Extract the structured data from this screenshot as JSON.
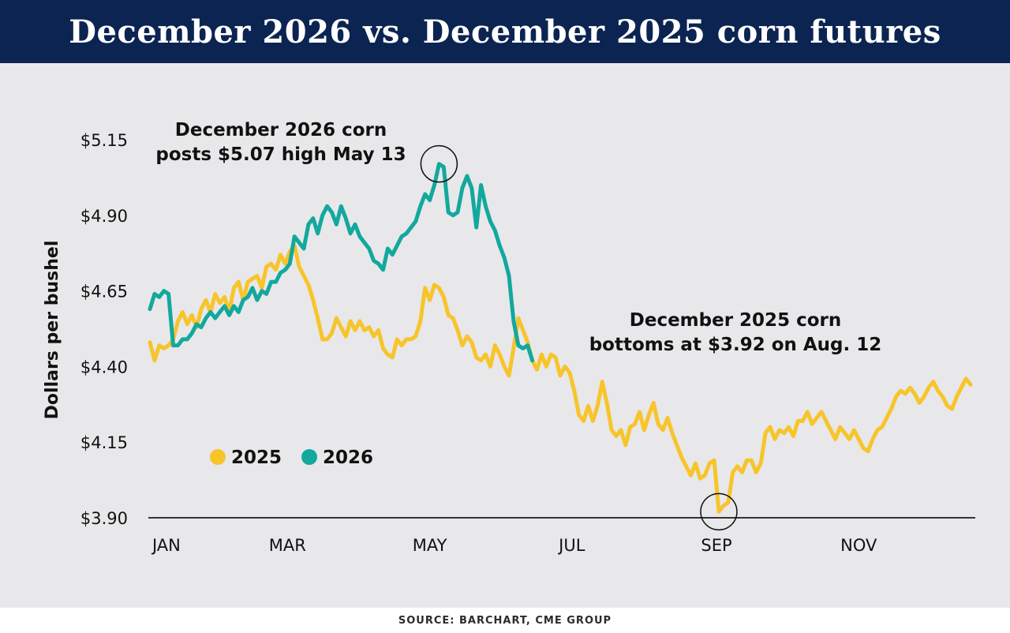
{
  "header": {
    "title": "December 2026 vs. December 2025 corn futures"
  },
  "footer": {
    "source": "SOURCE: BARCHART, CME GROUP"
  },
  "chart_data": {
    "type": "line",
    "ylabel": "Dollars per bushel",
    "ylim": [
      3.9,
      5.15
    ],
    "y_ticks": [
      {
        "value": 5.15,
        "label": "$5.15"
      },
      {
        "value": 4.9,
        "label": "$4.90"
      },
      {
        "value": 4.65,
        "label": "$4.65"
      },
      {
        "value": 4.4,
        "label": "$4.40"
      },
      {
        "value": 4.15,
        "label": "$4.15"
      },
      {
        "value": 3.9,
        "label": "$3.90"
      }
    ],
    "x_unit": "day of year",
    "xlim": [
      1,
      355
    ],
    "x_ticks": [
      {
        "value": 2,
        "label": "JAN"
      },
      {
        "value": 60,
        "label": "MAR"
      },
      {
        "value": 121,
        "label": "MAY"
      },
      {
        "value": 182,
        "label": "JUL"
      },
      {
        "value": 244,
        "label": "SEP"
      },
      {
        "value": 305,
        "label": "NOV"
      }
    ],
    "legend": {
      "placement": "lower-left"
    },
    "series": [
      {
        "name": "2025",
        "color": "#f7c42b",
        "points": [
          [
            1,
            4.48
          ],
          [
            3,
            4.42
          ],
          [
            5,
            4.47
          ],
          [
            7,
            4.46
          ],
          [
            9,
            4.47
          ],
          [
            11,
            4.49
          ],
          [
            13,
            4.55
          ],
          [
            15,
            4.58
          ],
          [
            17,
            4.54
          ],
          [
            19,
            4.57
          ],
          [
            21,
            4.53
          ],
          [
            23,
            4.59
          ],
          [
            25,
            4.62
          ],
          [
            27,
            4.58
          ],
          [
            29,
            4.64
          ],
          [
            31,
            4.61
          ],
          [
            33,
            4.63
          ],
          [
            35,
            4.58
          ],
          [
            37,
            4.66
          ],
          [
            39,
            4.68
          ],
          [
            41,
            4.62
          ],
          [
            43,
            4.68
          ],
          [
            45,
            4.69
          ],
          [
            47,
            4.7
          ],
          [
            49,
            4.66
          ],
          [
            51,
            4.73
          ],
          [
            53,
            4.74
          ],
          [
            55,
            4.72
          ],
          [
            57,
            4.77
          ],
          [
            59,
            4.74
          ],
          [
            61,
            4.78
          ],
          [
            63,
            4.8
          ],
          [
            65,
            4.73
          ],
          [
            67,
            4.7
          ],
          [
            69,
            4.67
          ],
          [
            71,
            4.62
          ],
          [
            73,
            4.56
          ],
          [
            75,
            4.49
          ],
          [
            77,
            4.49
          ],
          [
            79,
            4.51
          ],
          [
            81,
            4.56
          ],
          [
            83,
            4.53
          ],
          [
            85,
            4.5
          ],
          [
            87,
            4.55
          ],
          [
            89,
            4.52
          ],
          [
            91,
            4.55
          ],
          [
            93,
            4.52
          ],
          [
            95,
            4.53
          ],
          [
            97,
            4.5
          ],
          [
            99,
            4.52
          ],
          [
            101,
            4.46
          ],
          [
            103,
            4.44
          ],
          [
            105,
            4.43
          ],
          [
            107,
            4.49
          ],
          [
            109,
            4.47
          ],
          [
            111,
            4.49
          ],
          [
            113,
            4.49
          ],
          [
            115,
            4.5
          ],
          [
            117,
            4.55
          ],
          [
            119,
            4.66
          ],
          [
            121,
            4.62
          ],
          [
            123,
            4.67
          ],
          [
            125,
            4.66
          ],
          [
            127,
            4.63
          ],
          [
            129,
            4.57
          ],
          [
            131,
            4.56
          ],
          [
            133,
            4.52
          ],
          [
            135,
            4.47
          ],
          [
            137,
            4.5
          ],
          [
            139,
            4.48
          ],
          [
            141,
            4.43
          ],
          [
            143,
            4.42
          ],
          [
            145,
            4.44
          ],
          [
            147,
            4.4
          ],
          [
            149,
            4.47
          ],
          [
            151,
            4.44
          ],
          [
            153,
            4.4
          ],
          [
            155,
            4.37
          ],
          [
            157,
            4.46
          ],
          [
            159,
            4.56
          ],
          [
            161,
            4.52
          ],
          [
            163,
            4.48
          ],
          [
            165,
            4.42
          ],
          [
            167,
            4.39
          ],
          [
            169,
            4.44
          ],
          [
            171,
            4.4
          ],
          [
            173,
            4.44
          ],
          [
            175,
            4.43
          ],
          [
            177,
            4.37
          ],
          [
            179,
            4.4
          ],
          [
            181,
            4.38
          ],
          [
            183,
            4.32
          ],
          [
            185,
            4.24
          ],
          [
            187,
            4.22
          ],
          [
            189,
            4.27
          ],
          [
            191,
            4.22
          ],
          [
            193,
            4.27
          ],
          [
            195,
            4.35
          ],
          [
            197,
            4.28
          ],
          [
            199,
            4.19
          ],
          [
            201,
            4.17
          ],
          [
            203,
            4.19
          ],
          [
            205,
            4.14
          ],
          [
            207,
            4.2
          ],
          [
            209,
            4.21
          ],
          [
            211,
            4.25
          ],
          [
            213,
            4.19
          ],
          [
            215,
            4.24
          ],
          [
            217,
            4.28
          ],
          [
            219,
            4.21
          ],
          [
            221,
            4.19
          ],
          [
            223,
            4.23
          ],
          [
            225,
            4.18
          ],
          [
            227,
            4.14
          ],
          [
            229,
            4.1
          ],
          [
            231,
            4.07
          ],
          [
            233,
            4.04
          ],
          [
            235,
            4.08
          ],
          [
            237,
            4.03
          ],
          [
            239,
            4.04
          ],
          [
            241,
            4.08
          ],
          [
            243,
            4.09
          ],
          [
            245,
            3.92
          ],
          [
            247,
            3.94
          ],
          [
            249,
            3.95
          ],
          [
            251,
            4.05
          ],
          [
            253,
            4.07
          ],
          [
            255,
            4.05
          ],
          [
            257,
            4.09
          ],
          [
            259,
            4.09
          ],
          [
            261,
            4.05
          ],
          [
            263,
            4.08
          ],
          [
            265,
            4.18
          ],
          [
            267,
            4.2
          ],
          [
            269,
            4.16
          ],
          [
            271,
            4.19
          ],
          [
            273,
            4.18
          ],
          [
            275,
            4.2
          ],
          [
            277,
            4.17
          ],
          [
            279,
            4.22
          ],
          [
            281,
            4.22
          ],
          [
            283,
            4.25
          ],
          [
            285,
            4.21
          ],
          [
            287,
            4.23
          ],
          [
            289,
            4.25
          ],
          [
            291,
            4.22
          ],
          [
            293,
            4.19
          ],
          [
            295,
            4.16
          ],
          [
            297,
            4.2
          ],
          [
            299,
            4.18
          ],
          [
            301,
            4.16
          ],
          [
            303,
            4.19
          ],
          [
            305,
            4.16
          ],
          [
            307,
            4.13
          ],
          [
            309,
            4.12
          ],
          [
            311,
            4.16
          ],
          [
            313,
            4.19
          ],
          [
            315,
            4.2
          ],
          [
            317,
            4.23
          ],
          [
            319,
            4.26
          ],
          [
            321,
            4.3
          ],
          [
            323,
            4.32
          ],
          [
            325,
            4.31
          ],
          [
            327,
            4.33
          ],
          [
            329,
            4.31
          ],
          [
            331,
            4.28
          ],
          [
            333,
            4.3
          ],
          [
            335,
            4.33
          ],
          [
            337,
            4.35
          ],
          [
            339,
            4.32
          ],
          [
            341,
            4.3
          ],
          [
            343,
            4.27
          ],
          [
            345,
            4.26
          ],
          [
            347,
            4.3
          ],
          [
            349,
            4.33
          ],
          [
            351,
            4.36
          ],
          [
            353,
            4.34
          ]
        ]
      },
      {
        "name": "2026",
        "color": "#13a89e",
        "points": [
          [
            1,
            4.59
          ],
          [
            3,
            4.64
          ],
          [
            5,
            4.63
          ],
          [
            7,
            4.65
          ],
          [
            9,
            4.64
          ],
          [
            11,
            4.47
          ],
          [
            13,
            4.47
          ],
          [
            15,
            4.49
          ],
          [
            17,
            4.49
          ],
          [
            19,
            4.51
          ],
          [
            21,
            4.54
          ],
          [
            23,
            4.53
          ],
          [
            25,
            4.56
          ],
          [
            27,
            4.58
          ],
          [
            29,
            4.56
          ],
          [
            31,
            4.58
          ],
          [
            33,
            4.6
          ],
          [
            35,
            4.57
          ],
          [
            37,
            4.6
          ],
          [
            39,
            4.58
          ],
          [
            41,
            4.62
          ],
          [
            43,
            4.63
          ],
          [
            45,
            4.66
          ],
          [
            47,
            4.62
          ],
          [
            49,
            4.65
          ],
          [
            51,
            4.64
          ],
          [
            53,
            4.68
          ],
          [
            55,
            4.68
          ],
          [
            57,
            4.71
          ],
          [
            59,
            4.72
          ],
          [
            61,
            4.74
          ],
          [
            63,
            4.83
          ],
          [
            65,
            4.81
          ],
          [
            67,
            4.79
          ],
          [
            69,
            4.87
          ],
          [
            71,
            4.89
          ],
          [
            73,
            4.84
          ],
          [
            75,
            4.9
          ],
          [
            77,
            4.93
          ],
          [
            79,
            4.91
          ],
          [
            81,
            4.87
          ],
          [
            83,
            4.93
          ],
          [
            85,
            4.89
          ],
          [
            87,
            4.84
          ],
          [
            89,
            4.87
          ],
          [
            91,
            4.83
          ],
          [
            93,
            4.81
          ],
          [
            95,
            4.79
          ],
          [
            97,
            4.75
          ],
          [
            99,
            4.74
          ],
          [
            101,
            4.72
          ],
          [
            103,
            4.79
          ],
          [
            105,
            4.77
          ],
          [
            107,
            4.8
          ],
          [
            109,
            4.83
          ],
          [
            111,
            4.84
          ],
          [
            113,
            4.86
          ],
          [
            115,
            4.88
          ],
          [
            117,
            4.93
          ],
          [
            119,
            4.97
          ],
          [
            121,
            4.95
          ],
          [
            123,
            5.0
          ],
          [
            125,
            5.07
          ],
          [
            127,
            5.06
          ],
          [
            129,
            4.91
          ],
          [
            131,
            4.9
          ],
          [
            133,
            4.91
          ],
          [
            135,
            4.99
          ],
          [
            137,
            5.03
          ],
          [
            139,
            4.99
          ],
          [
            141,
            4.86
          ],
          [
            143,
            5.0
          ],
          [
            145,
            4.93
          ],
          [
            147,
            4.88
          ],
          [
            149,
            4.85
          ],
          [
            151,
            4.8
          ],
          [
            153,
            4.76
          ],
          [
            155,
            4.7
          ],
          [
            157,
            4.55
          ],
          [
            159,
            4.47
          ],
          [
            161,
            4.46
          ],
          [
            163,
            4.47
          ],
          [
            165,
            4.42
          ]
        ]
      }
    ],
    "annotations": [
      {
        "lines": [
          "December 2026 corn",
          "posts $5.07 high May 13"
        ],
        "x": 125,
        "y": 5.07,
        "series": "2026"
      },
      {
        "lines": [
          "December 2025 corn",
          "bottoms at $3.92 on Aug. 12"
        ],
        "x": 245,
        "y": 3.92,
        "series": "2025"
      }
    ]
  }
}
